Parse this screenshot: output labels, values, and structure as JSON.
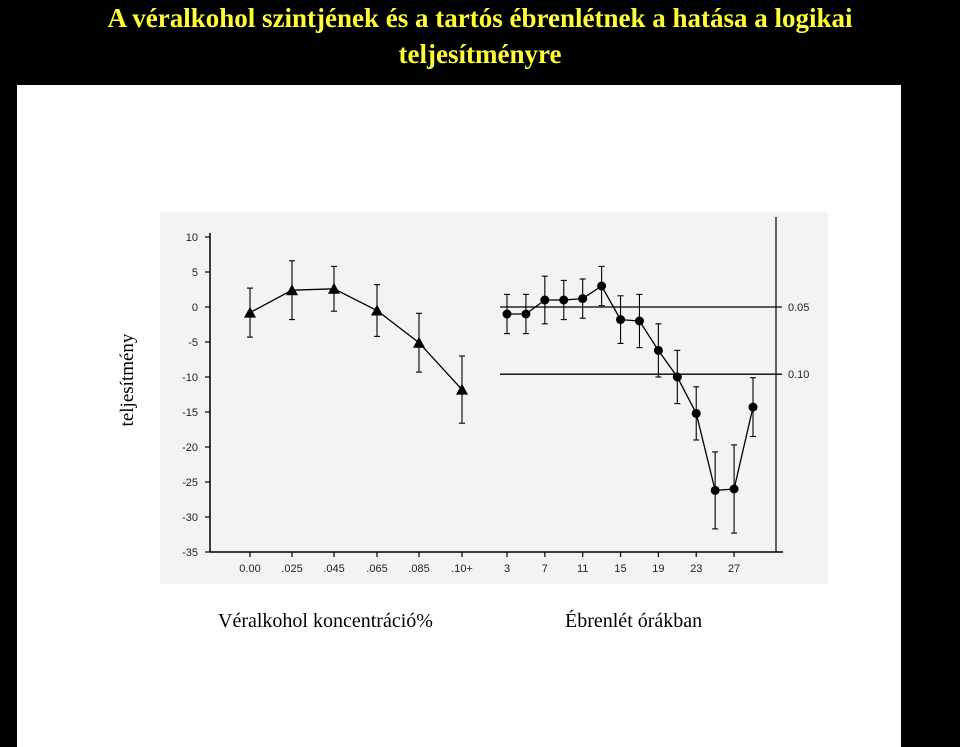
{
  "title": {
    "line1": "A véralkohol szintjének és a tartós ébrenlétnek a hatása a logikai",
    "line2": "teljesítményre"
  },
  "colors": {
    "background": "#000000",
    "title": "#ffff33",
    "panel": "#ffffff",
    "ink": "#000000"
  },
  "chart_data": {
    "type": "line",
    "ylabel": "teljesítmény",
    "ylim": [
      -35,
      10
    ],
    "yticks": [
      "10",
      "5",
      "0",
      "-5",
      "-10",
      "-15",
      "-20",
      "-25",
      "-30",
      "-35"
    ],
    "grid": false,
    "panels": [
      {
        "name": "",
        "xlabel": "Véralkohol koncentráció%",
        "marker": "triangle",
        "categories": [
          "0.00",
          ".025",
          ".045",
          ".065",
          ".085",
          ".10+"
        ],
        "values": [
          -0.8,
          2.4,
          2.6,
          -0.5,
          -5.1,
          -11.8
        ],
        "error": [
          3.5,
          4.2,
          3.2,
          3.7,
          4.2,
          4.8
        ]
      },
      {
        "name": "",
        "xlabel": "Ébrenlét órákban",
        "marker": "circle",
        "x_tick_labels": [
          "3",
          "7",
          "11",
          "15",
          "19",
          "23",
          "27"
        ],
        "x_ticks": [
          3,
          7,
          11,
          15,
          19,
          23,
          27
        ],
        "x": [
          3,
          5,
          7,
          9,
          11,
          13,
          15,
          17,
          19,
          21,
          23,
          25,
          27,
          29
        ],
        "values": [
          -1,
          -1,
          1,
          1,
          1.2,
          3,
          -1.8,
          -2,
          -6.2,
          -10,
          -15.2,
          -26.2,
          -26.0,
          -14.3
        ],
        "error": [
          2.8,
          2.8,
          3.4,
          2.8,
          2.8,
          2.8,
          3.4,
          3.8,
          3.8,
          3.8,
          3.8,
          5.5,
          6.3,
          4.2
        ],
        "reference_lines": [
          {
            "label": "0.05",
            "y": 0
          },
          {
            "label": "0.10",
            "y": -9.6
          }
        ]
      }
    ]
  }
}
